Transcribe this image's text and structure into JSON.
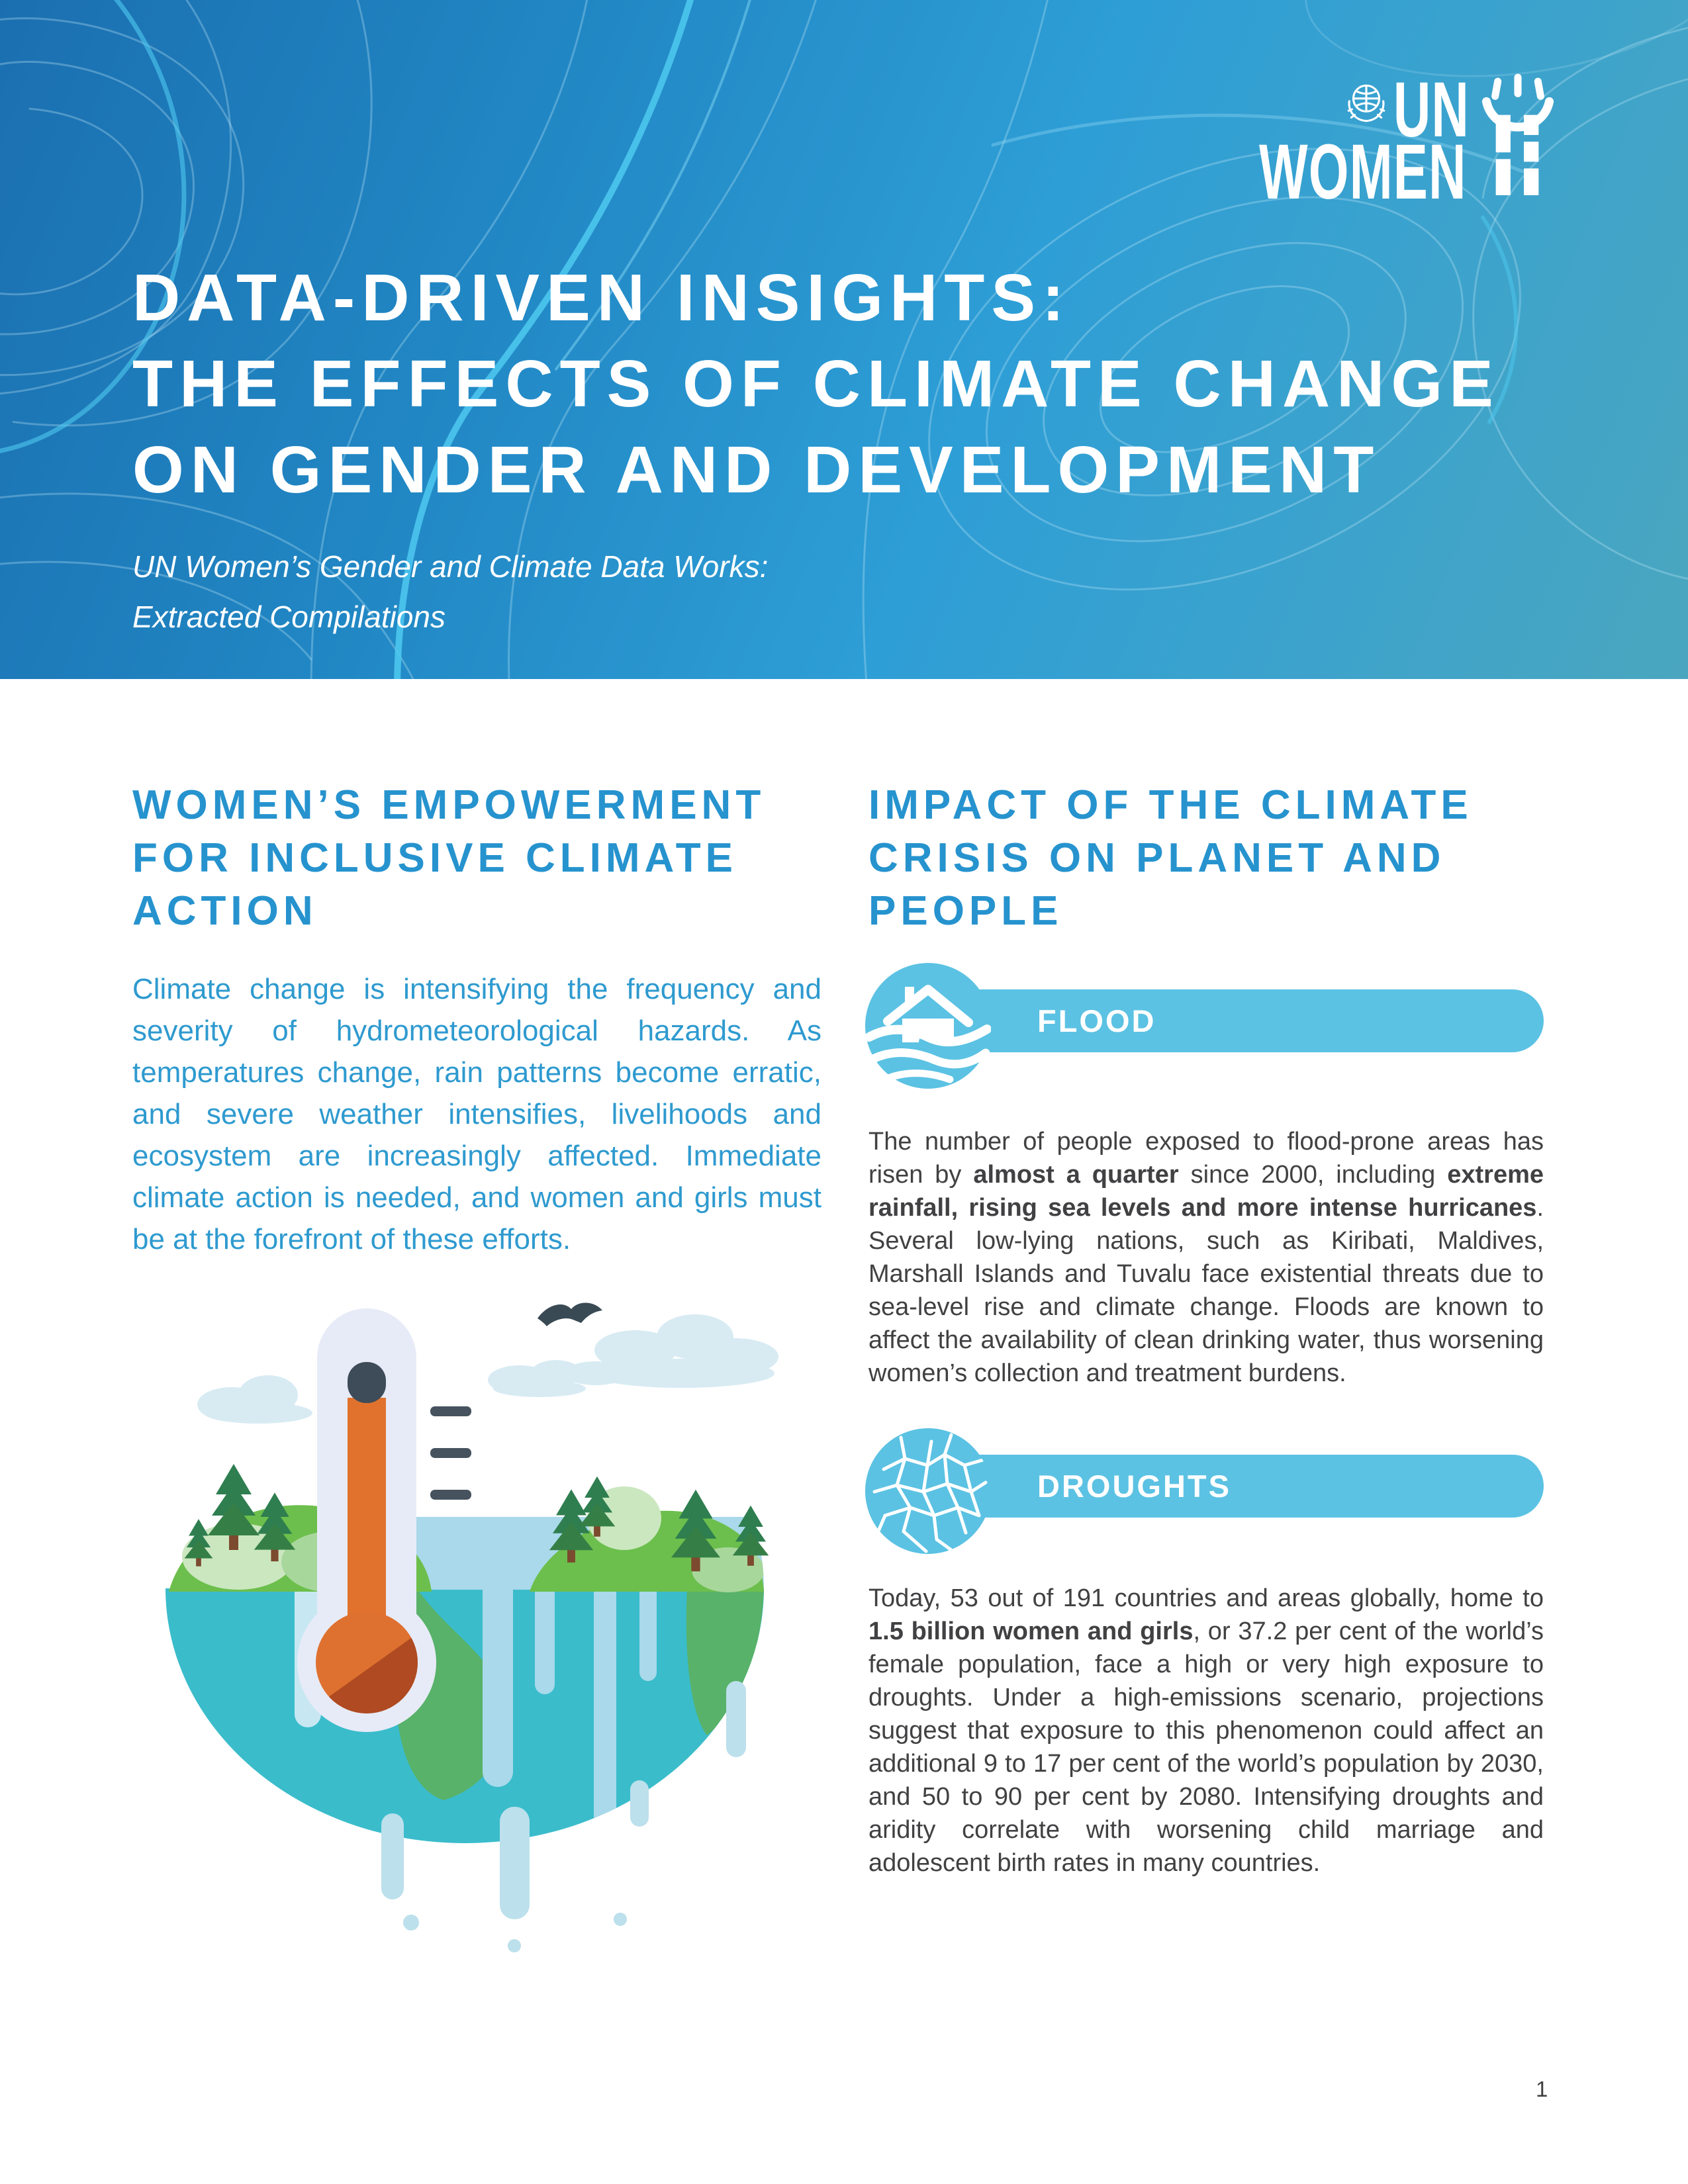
{
  "logo": {
    "org_un": "UN",
    "org_women": "WOMEN"
  },
  "header": {
    "title_lines": [
      "DATA-DRIVEN INSIGHTS:",
      "THE EFFECTS OF CLIMATE CHANGE",
      "ON GENDER AND DEVELOPMENT"
    ],
    "subtitle_lines": [
      "UN Women’s Gender and Climate Data Works:",
      "Extracted Compilations"
    ]
  },
  "left_column": {
    "heading_lines": [
      "WOMEN’S EMPOWERMENT",
      "FOR INCLUSIVE CLIMATE",
      "ACTION"
    ],
    "intro": "Climate change is intensifying the frequency and severity of hydrometeorological hazards. As temperatures change, rain patterns become erratic, and severe weather intensifies, livelihoods and ecosystem are increasingly affected. Immediate climate action is needed, and women and girls must be at the forefront of these efforts.",
    "illustration": "thermometer-melting-earth"
  },
  "right_column": {
    "heading_lines": [
      "IMPACT OF THE CLIMATE",
      "CRISIS ON PLANET AND",
      "PEOPLE"
    ],
    "sections": [
      {
        "label": "FLOOD",
        "icon": "flooded-house",
        "paragraph": [
          {
            "t": "The number of people exposed to flood-prone areas has risen by ",
            "b": false
          },
          {
            "t": "almost a quarter",
            "b": true
          },
          {
            "t": " since 2000, including ",
            "b": false
          },
          {
            "t": "extreme rainfall, rising sea levels and more intense hurricanes",
            "b": true
          },
          {
            "t": ". Several low-lying nations, such as Kiribati, Maldives, Marshall Islands and Tuvalu face existential threats due to sea-level rise and climate change. Floods are known to affect the availability of clean drinking water, thus worsening women’s collection and treatment burdens.",
            "b": false
          }
        ]
      },
      {
        "label": "DROUGHTS",
        "icon": "cracked-earth",
        "paragraph": [
          {
            "t": "Today, 53 out of 191 countries and areas globally, home to ",
            "b": false
          },
          {
            "t": "1.5 billion women and girls",
            "b": true
          },
          {
            "t": ", or 37.2 per cent of the world’s female population, face a high or very high exposure to droughts. Under a high-emissions scenario, projections suggest that exposure to this phenomenon could affect an additional 9 to 17 per cent of the world’s population by 2030, and 50 to 90 per cent by 2080. Intensifying droughts and aridity correlate with worsening child marriage and adolescent birth rates in many countries.",
            "b": false
          }
        ]
      }
    ]
  },
  "footer": {
    "page_number": "1"
  },
  "colors": {
    "header_blue_dark": "#1B6FB0",
    "header_blue": "#2492CD",
    "header_teal": "#4AA6BF",
    "contour_line": "#BFE6F7",
    "contour_accent": "#4EC9F0",
    "heading_blue": "#2693CE",
    "intro_blue": "#2E9ACF",
    "body_gray": "#414042",
    "banner_blue": "#5BC2E3"
  }
}
